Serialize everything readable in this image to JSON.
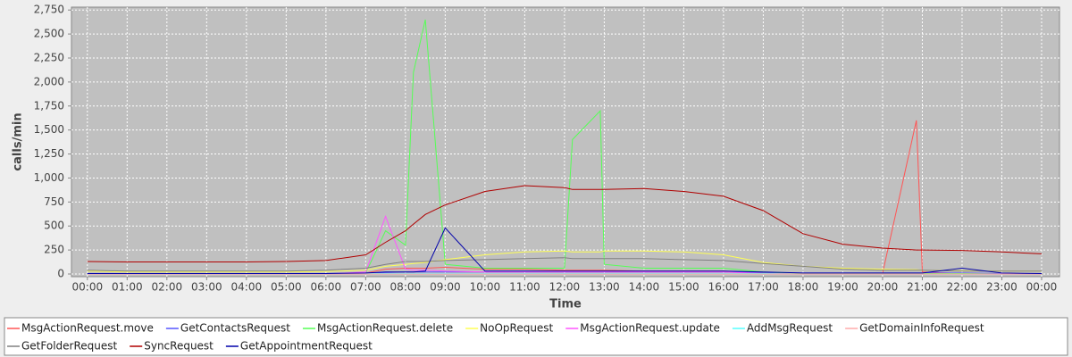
{
  "chart_data": {
    "type": "line",
    "x_label": "Time",
    "y_label": "calls/min",
    "x": [
      0,
      1,
      2,
      3,
      4,
      5,
      6,
      7,
      7.5,
      8,
      8.2,
      8.5,
      9,
      10,
      11,
      12,
      12.2,
      12.9,
      13,
      14,
      15,
      16,
      17,
      18,
      19,
      20,
      20.85,
      21,
      22,
      23,
      24
    ],
    "xlim": [
      -0.4,
      24.45
    ],
    "xticks": [
      {
        "value": 0,
        "label": "00:00"
      },
      {
        "value": 1,
        "label": "01:00"
      },
      {
        "value": 2,
        "label": "02:00"
      },
      {
        "value": 3,
        "label": "03:00"
      },
      {
        "value": 4,
        "label": "04:00"
      },
      {
        "value": 5,
        "label": "05:00"
      },
      {
        "value": 6,
        "label": "06:00"
      },
      {
        "value": 7,
        "label": "07:00"
      },
      {
        "value": 8,
        "label": "08:00"
      },
      {
        "value": 9,
        "label": "09:00"
      },
      {
        "value": 10,
        "label": "10:00"
      },
      {
        "value": 11,
        "label": "11:00"
      },
      {
        "value": 12,
        "label": "12:00"
      },
      {
        "value": 13,
        "label": "13:00"
      },
      {
        "value": 14,
        "label": "14:00"
      },
      {
        "value": 15,
        "label": "15:00"
      },
      {
        "value": 16,
        "label": "16:00"
      },
      {
        "value": 17,
        "label": "17:00"
      },
      {
        "value": 18,
        "label": "18:00"
      },
      {
        "value": 19,
        "label": "19:00"
      },
      {
        "value": 20,
        "label": "20:00"
      },
      {
        "value": 21,
        "label": "21:00"
      },
      {
        "value": 22,
        "label": "22:00"
      },
      {
        "value": 23,
        "label": "23:00"
      },
      {
        "value": 24,
        "label": "00:00"
      }
    ],
    "ylim": [
      -28,
      2780
    ],
    "yticks": [
      0,
      250,
      500,
      750,
      {
        "value": 1000,
        "label": "1,000"
      },
      {
        "value": 1250,
        "label": "1,250"
      },
      {
        "value": 1500,
        "label": "1,500"
      },
      {
        "value": 1750,
        "label": "1,750"
      },
      {
        "value": 2000,
        "label": "2,000"
      },
      {
        "value": 2250,
        "label": "2,250"
      },
      {
        "value": 2500,
        "label": "2,500"
      },
      {
        "value": 2750,
        "label": "2,750"
      }
    ],
    "grid": true,
    "legend": "bottom",
    "series": [
      {
        "name": "MsgActionRequest.move",
        "color": "#ff5555",
        "values": [
          0,
          0,
          0,
          0,
          0,
          0,
          0,
          10,
          50,
          60,
          60,
          60,
          70,
          50,
          50,
          40,
          40,
          40,
          40,
          30,
          30,
          30,
          10,
          5,
          5,
          5,
          1600,
          20,
          5,
          0,
          0
        ]
      },
      {
        "name": "GetContactsRequest",
        "color": "#5555ff",
        "values": [
          5,
          5,
          5,
          5,
          5,
          5,
          5,
          10,
          15,
          20,
          20,
          20,
          20,
          20,
          20,
          20,
          20,
          20,
          20,
          20,
          20,
          20,
          15,
          10,
          10,
          10,
          10,
          10,
          10,
          5,
          5
        ]
      },
      {
        "name": "MsgActionRequest.delete",
        "color": "#55ff55",
        "values": [
          0,
          0,
          0,
          0,
          0,
          0,
          0,
          10,
          450,
          300,
          2100,
          2650,
          100,
          60,
          60,
          60,
          1400,
          1700,
          100,
          60,
          60,
          60,
          20,
          5,
          5,
          5,
          5,
          5,
          5,
          0,
          0
        ]
      },
      {
        "name": "NoOpRequest",
        "color": "#ffff55",
        "values": [
          30,
          20,
          20,
          20,
          20,
          20,
          25,
          40,
          80,
          100,
          110,
          120,
          150,
          200,
          230,
          240,
          230,
          230,
          240,
          240,
          230,
          200,
          120,
          80,
          60,
          50,
          45,
          40,
          35,
          30,
          30
        ]
      },
      {
        "name": "MsgActionRequest.update",
        "color": "#ff55ff",
        "values": [
          0,
          0,
          0,
          0,
          0,
          0,
          0,
          20,
          600,
          50,
          40,
          40,
          30,
          20,
          20,
          20,
          20,
          20,
          20,
          20,
          20,
          20,
          5,
          0,
          0,
          0,
          0,
          0,
          0,
          0,
          0
        ]
      },
      {
        "name": "AddMsgRequest",
        "color": "#55ffff",
        "values": [
          0,
          0,
          0,
          0,
          0,
          0,
          0,
          5,
          5,
          5,
          5,
          5,
          5,
          5,
          5,
          5,
          5,
          5,
          5,
          5,
          5,
          5,
          5,
          0,
          0,
          0,
          0,
          0,
          0,
          0,
          0
        ]
      },
      {
        "name": "GetDomainInfoRequest",
        "color": "#ffaaaa",
        "values": [
          0,
          0,
          0,
          0,
          0,
          0,
          0,
          0,
          0,
          0,
          0,
          0,
          0,
          0,
          0,
          0,
          0,
          0,
          0,
          0,
          0,
          0,
          0,
          0,
          0,
          0,
          0,
          0,
          0,
          0,
          0
        ]
      },
      {
        "name": "GetFolderRequest",
        "color": "#808080",
        "values": [
          40,
          30,
          30,
          30,
          30,
          30,
          40,
          60,
          100,
          130,
          130,
          130,
          140,
          150,
          160,
          170,
          160,
          160,
          160,
          160,
          150,
          140,
          110,
          80,
          50,
          40,
          40,
          40,
          30,
          30,
          30
        ]
      },
      {
        "name": "SyncRequest",
        "color": "#b00000",
        "values": [
          130,
          125,
          125,
          125,
          125,
          130,
          140,
          200,
          330,
          450,
          520,
          620,
          720,
          860,
          920,
          900,
          880,
          880,
          880,
          890,
          860,
          810,
          660,
          420,
          310,
          270,
          250,
          250,
          245,
          230,
          210
        ]
      },
      {
        "name": "GetAppointmentRequest",
        "color": "#0000aa",
        "values": [
          5,
          5,
          5,
          5,
          5,
          5,
          5,
          10,
          20,
          20,
          20,
          30,
          480,
          30,
          30,
          30,
          30,
          30,
          30,
          30,
          30,
          30,
          20,
          10,
          10,
          10,
          10,
          10,
          60,
          10,
          5
        ]
      }
    ]
  }
}
